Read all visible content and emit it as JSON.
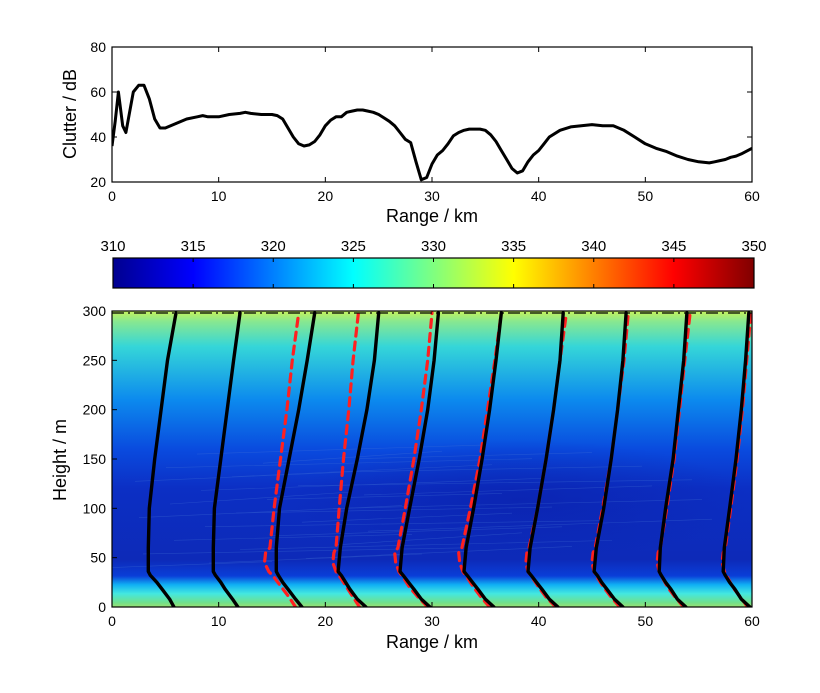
{
  "chart_data": [
    {
      "type": "line",
      "xlabel": "Range / km",
      "ylabel": "Clutter / dB",
      "xlim": [
        0,
        60
      ],
      "ylim": [
        20,
        80
      ],
      "xticks": [
        "0",
        "10",
        "20",
        "30",
        "40",
        "50",
        "60"
      ],
      "yticks": [
        "20",
        "40",
        "60",
        "80"
      ],
      "grid": false,
      "series": [
        {
          "color": "#000000",
          "x": [
            0,
            0.3,
            0.6,
            1.0,
            1.3,
            2.0,
            2.5,
            3.0,
            3.5,
            4.0,
            4.5,
            5.0,
            6.0,
            7.0,
            8.0,
            8.5,
            9.0,
            10.0,
            11.0,
            12.0,
            12.5,
            13.0,
            14.0,
            15.0,
            15.5,
            16.0,
            16.5,
            17.0,
            17.5,
            18.0,
            18.5,
            19.0,
            19.5,
            20.0,
            20.5,
            21.0,
            21.5,
            22.0,
            22.5,
            23.0,
            23.5,
            24.0,
            24.5,
            25.0,
            25.5,
            26.0,
            26.5,
            27.0,
            27.5,
            28.0,
            28.5,
            29.0,
            29.5,
            30.0,
            30.5,
            31.0,
            31.5,
            32.0,
            32.5,
            33.0,
            33.5,
            34.0,
            34.5,
            35.0,
            35.5,
            36.0,
            36.5,
            37.0,
            37.5,
            38.0,
            38.5,
            39.0,
            39.5,
            40.0,
            40.5,
            41.0,
            42.0,
            43.0,
            44.0,
            45.0,
            46.0,
            47.0,
            48.0,
            49.0,
            50.0,
            51.0,
            52.0,
            53.0,
            54.0,
            55.0,
            56.0,
            56.5,
            57.0,
            57.5,
            58.0,
            58.5,
            59.0,
            60.0
          ],
          "values": [
            36,
            47,
            60,
            45,
            42,
            60,
            63,
            63,
            57,
            48,
            44,
            44,
            46,
            48,
            49,
            49.5,
            49,
            49,
            50,
            50.5,
            51,
            50.5,
            50,
            50,
            49.5,
            48,
            44,
            40,
            37,
            36,
            36.5,
            38,
            41,
            45,
            47.5,
            49,
            49,
            51,
            51.5,
            52,
            52,
            51.5,
            51,
            50,
            48.5,
            47,
            45,
            42,
            39,
            37.5,
            29,
            21,
            22,
            28,
            32,
            34,
            37,
            40.5,
            42,
            43,
            43.5,
            43.5,
            43.5,
            43,
            41,
            38,
            34,
            30,
            26,
            24,
            25,
            29,
            32,
            34,
            37,
            40,
            43,
            44.5,
            45,
            45.5,
            45,
            45,
            43,
            40,
            37,
            35,
            33.5,
            31.5,
            30,
            29,
            28.5,
            29,
            29.5,
            30,
            31,
            31.5,
            32.5,
            35
          ]
        }
      ]
    },
    {
      "type": "heatmap",
      "xlabel": "Range / km",
      "ylabel": "Height / m",
      "xlim": [
        0,
        60
      ],
      "ylim": [
        0,
        300
      ],
      "xticks": [
        "0",
        "10",
        "20",
        "30",
        "40",
        "50",
        "60"
      ],
      "yticks": [
        "0",
        "50",
        "100",
        "150",
        "200",
        "250",
        "300"
      ],
      "colorbar": {
        "colormap": "jet",
        "range": [
          310,
          350
        ],
        "ticks": [
          "310",
          "315",
          "320",
          "325",
          "330",
          "335",
          "340",
          "345",
          "350"
        ],
        "placement": "top"
      },
      "profiles": [
        {
          "style": "solid",
          "color": "#000000",
          "height": [
            0,
            8,
            18,
            25,
            32,
            36,
            60,
            100,
            150,
            200,
            250,
            298
          ],
          "range": [
            5.8,
            5.4,
            4.7,
            4.2,
            3.6,
            3.4,
            3.4,
            3.5,
            4.0,
            4.6,
            5.2,
            6.0
          ]
        },
        {
          "style": "solid",
          "color": "#000000",
          "height": [
            0,
            8,
            18,
            25,
            32,
            36,
            60,
            100,
            150,
            200,
            250,
            298
          ],
          "range": [
            11.8,
            11.3,
            10.6,
            10.2,
            9.7,
            9.5,
            9.5,
            9.6,
            10.2,
            10.8,
            11.4,
            12.0
          ]
        },
        {
          "style": "dashed",
          "color": "#ff2020",
          "height": [
            0,
            10,
            20,
            30,
            36,
            45,
            55,
            60,
            100,
            150,
            200,
            250,
            298
          ],
          "range": [
            17.2,
            16.6,
            15.9,
            15.2,
            14.7,
            14.3,
            14.4,
            14.8,
            15.2,
            15.8,
            16.4,
            16.9,
            17.5
          ]
        },
        {
          "style": "solid",
          "color": "#000000",
          "height": [
            0,
            8,
            18,
            25,
            32,
            36,
            60,
            100,
            150,
            200,
            250,
            298
          ],
          "range": [
            17.8,
            17.2,
            16.5,
            16.0,
            15.6,
            15.4,
            15.4,
            15.7,
            16.6,
            17.5,
            18.3,
            19.0
          ]
        },
        {
          "style": "dashed",
          "color": "#ff2020",
          "height": [
            0,
            10,
            20,
            30,
            36,
            45,
            55,
            60,
            100,
            150,
            200,
            250,
            298
          ],
          "range": [
            23.2,
            22.6,
            22.0,
            21.4,
            21.0,
            20.7,
            20.8,
            21.0,
            21.3,
            21.7,
            22.2,
            22.6,
            23.1
          ]
        },
        {
          "style": "solid",
          "color": "#000000",
          "height": [
            0,
            8,
            18,
            25,
            32,
            36,
            60,
            100,
            150,
            200,
            250,
            298
          ],
          "range": [
            23.8,
            23.0,
            22.3,
            21.9,
            21.5,
            21.2,
            21.4,
            22.0,
            23.0,
            23.9,
            24.6,
            25.0
          ]
        },
        {
          "style": "dashed",
          "color": "#ff2020",
          "height": [
            0,
            10,
            20,
            30,
            36,
            45,
            55,
            60,
            100,
            150,
            200,
            250,
            298
          ],
          "range": [
            29.6,
            28.7,
            27.9,
            27.3,
            26.9,
            26.6,
            26.5,
            26.8,
            27.5,
            28.3,
            29.0,
            29.6,
            30.0
          ]
        },
        {
          "style": "solid",
          "color": "#000000",
          "height": [
            0,
            8,
            18,
            25,
            32,
            36,
            60,
            100,
            150,
            200,
            250,
            298
          ],
          "range": [
            29.8,
            29.0,
            28.3,
            27.8,
            27.3,
            27.0,
            27.2,
            27.9,
            28.8,
            29.6,
            30.2,
            30.6
          ]
        },
        {
          "style": "dashed",
          "color": "#ff2020",
          "height": [
            0,
            10,
            20,
            30,
            36,
            45,
            55,
            60,
            100,
            150,
            200,
            250,
            298
          ],
          "range": [
            35.4,
            34.6,
            33.9,
            33.3,
            32.9,
            32.6,
            32.5,
            32.8,
            33.6,
            34.5,
            35.2,
            35.9,
            36.5
          ]
        },
        {
          "style": "solid",
          "color": "#000000",
          "height": [
            0,
            8,
            18,
            25,
            32,
            36,
            60,
            100,
            150,
            200,
            250,
            298
          ],
          "range": [
            35.8,
            35.0,
            34.3,
            33.8,
            33.3,
            33.0,
            33.2,
            33.9,
            34.7,
            35.4,
            36.0,
            36.5
          ]
        },
        {
          "style": "dashed",
          "color": "#ff2020",
          "height": [
            0,
            10,
            20,
            30,
            36,
            45,
            55,
            60,
            100,
            150,
            200,
            250,
            298
          ],
          "range": [
            41.6,
            40.7,
            40.0,
            39.4,
            39.0,
            38.8,
            38.9,
            39.1,
            39.9,
            40.7,
            41.4,
            42.0,
            42.6
          ]
        },
        {
          "style": "solid",
          "color": "#000000",
          "height": [
            0,
            8,
            18,
            25,
            32,
            36,
            60,
            100,
            150,
            200,
            250,
            298
          ],
          "range": [
            41.8,
            41.0,
            40.3,
            39.8,
            39.3,
            39.0,
            39.2,
            39.9,
            40.7,
            41.4,
            42.0,
            42.3
          ]
        },
        {
          "style": "dashed",
          "color": "#ff2020",
          "height": [
            0,
            10,
            20,
            30,
            36,
            45,
            55,
            60,
            100,
            150,
            200,
            250,
            298
          ],
          "range": [
            47.6,
            46.8,
            46.1,
            45.5,
            45.2,
            45.0,
            45.1,
            45.3,
            46.0,
            46.8,
            47.4,
            48.0,
            48.4
          ]
        },
        {
          "style": "solid",
          "color": "#000000",
          "height": [
            0,
            8,
            18,
            25,
            32,
            36,
            60,
            100,
            150,
            200,
            250,
            298
          ],
          "range": [
            47.9,
            47.1,
            46.4,
            45.9,
            45.5,
            45.2,
            45.4,
            46.1,
            46.8,
            47.4,
            47.9,
            48.2
          ]
        },
        {
          "style": "dashed",
          "color": "#ff2020",
          "height": [
            0,
            10,
            20,
            30,
            36,
            45,
            55,
            60,
            100,
            150,
            200,
            250,
            298
          ],
          "range": [
            53.6,
            52.8,
            52.1,
            51.6,
            51.3,
            51.1,
            51.2,
            51.4,
            52.0,
            52.7,
            53.2,
            53.7,
            54.2
          ]
        },
        {
          "style": "solid",
          "color": "#000000",
          "height": [
            0,
            8,
            18,
            25,
            32,
            36,
            60,
            100,
            150,
            200,
            250,
            298
          ],
          "range": [
            53.8,
            53.0,
            52.4,
            51.9,
            51.5,
            51.3,
            51.4,
            51.9,
            52.6,
            53.1,
            53.6,
            53.9
          ]
        },
        {
          "style": "dashed",
          "color": "#ff2020",
          "height": [
            0,
            10,
            20,
            30,
            36,
            45,
            55,
            60,
            100,
            150,
            200,
            250,
            298
          ],
          "range": [
            59.6,
            58.9,
            58.2,
            57.7,
            57.4,
            57.2,
            57.3,
            57.5,
            58.0,
            58.6,
            59.1,
            59.5,
            59.9
          ]
        },
        {
          "style": "solid",
          "color": "#000000",
          "height": [
            0,
            8,
            18,
            25,
            32,
            36,
            60,
            100,
            150,
            200,
            250,
            298
          ],
          "range": [
            59.8,
            59.0,
            58.4,
            57.9,
            57.5,
            57.3,
            57.4,
            57.9,
            58.5,
            59.0,
            59.4,
            59.7
          ]
        }
      ]
    }
  ]
}
